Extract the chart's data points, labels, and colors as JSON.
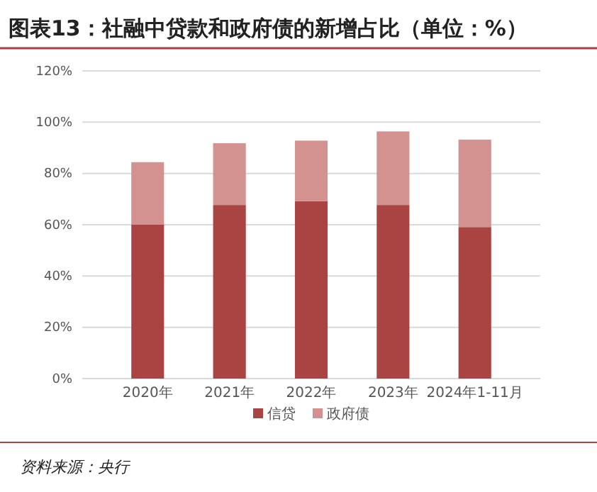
{
  "chart_data": {
    "type": "bar",
    "title": "图表13：社融中贷款和政府债的新增占比（单位：%）",
    "categories": [
      "2020年",
      "2021年",
      "2022年",
      "2023年",
      "2024年1-11月"
    ],
    "stacked": true,
    "series": [
      {
        "name": "信贷",
        "color": "#a94442",
        "values": [
          60,
          67.7,
          69.2,
          67.7,
          59.1
        ]
      },
      {
        "name": "政府债",
        "color": "#d39190",
        "values": [
          24.4,
          24.1,
          23.6,
          28.7,
          34.1
        ]
      }
    ],
    "ylim": [
      0,
      120
    ],
    "yticks": [
      {
        "value": 0,
        "label": "0%"
      },
      {
        "value": 20,
        "label": "20%"
      },
      {
        "value": 40,
        "label": "40%"
      },
      {
        "value": 60,
        "label": "60%"
      },
      {
        "value": 80,
        "label": "80%"
      },
      {
        "value": 100,
        "label": "100%"
      },
      {
        "value": 120,
        "label": "120%"
      }
    ],
    "grid": "y",
    "legend": "bottom",
    "annotations": [
      "资料来源：央行"
    ]
  }
}
